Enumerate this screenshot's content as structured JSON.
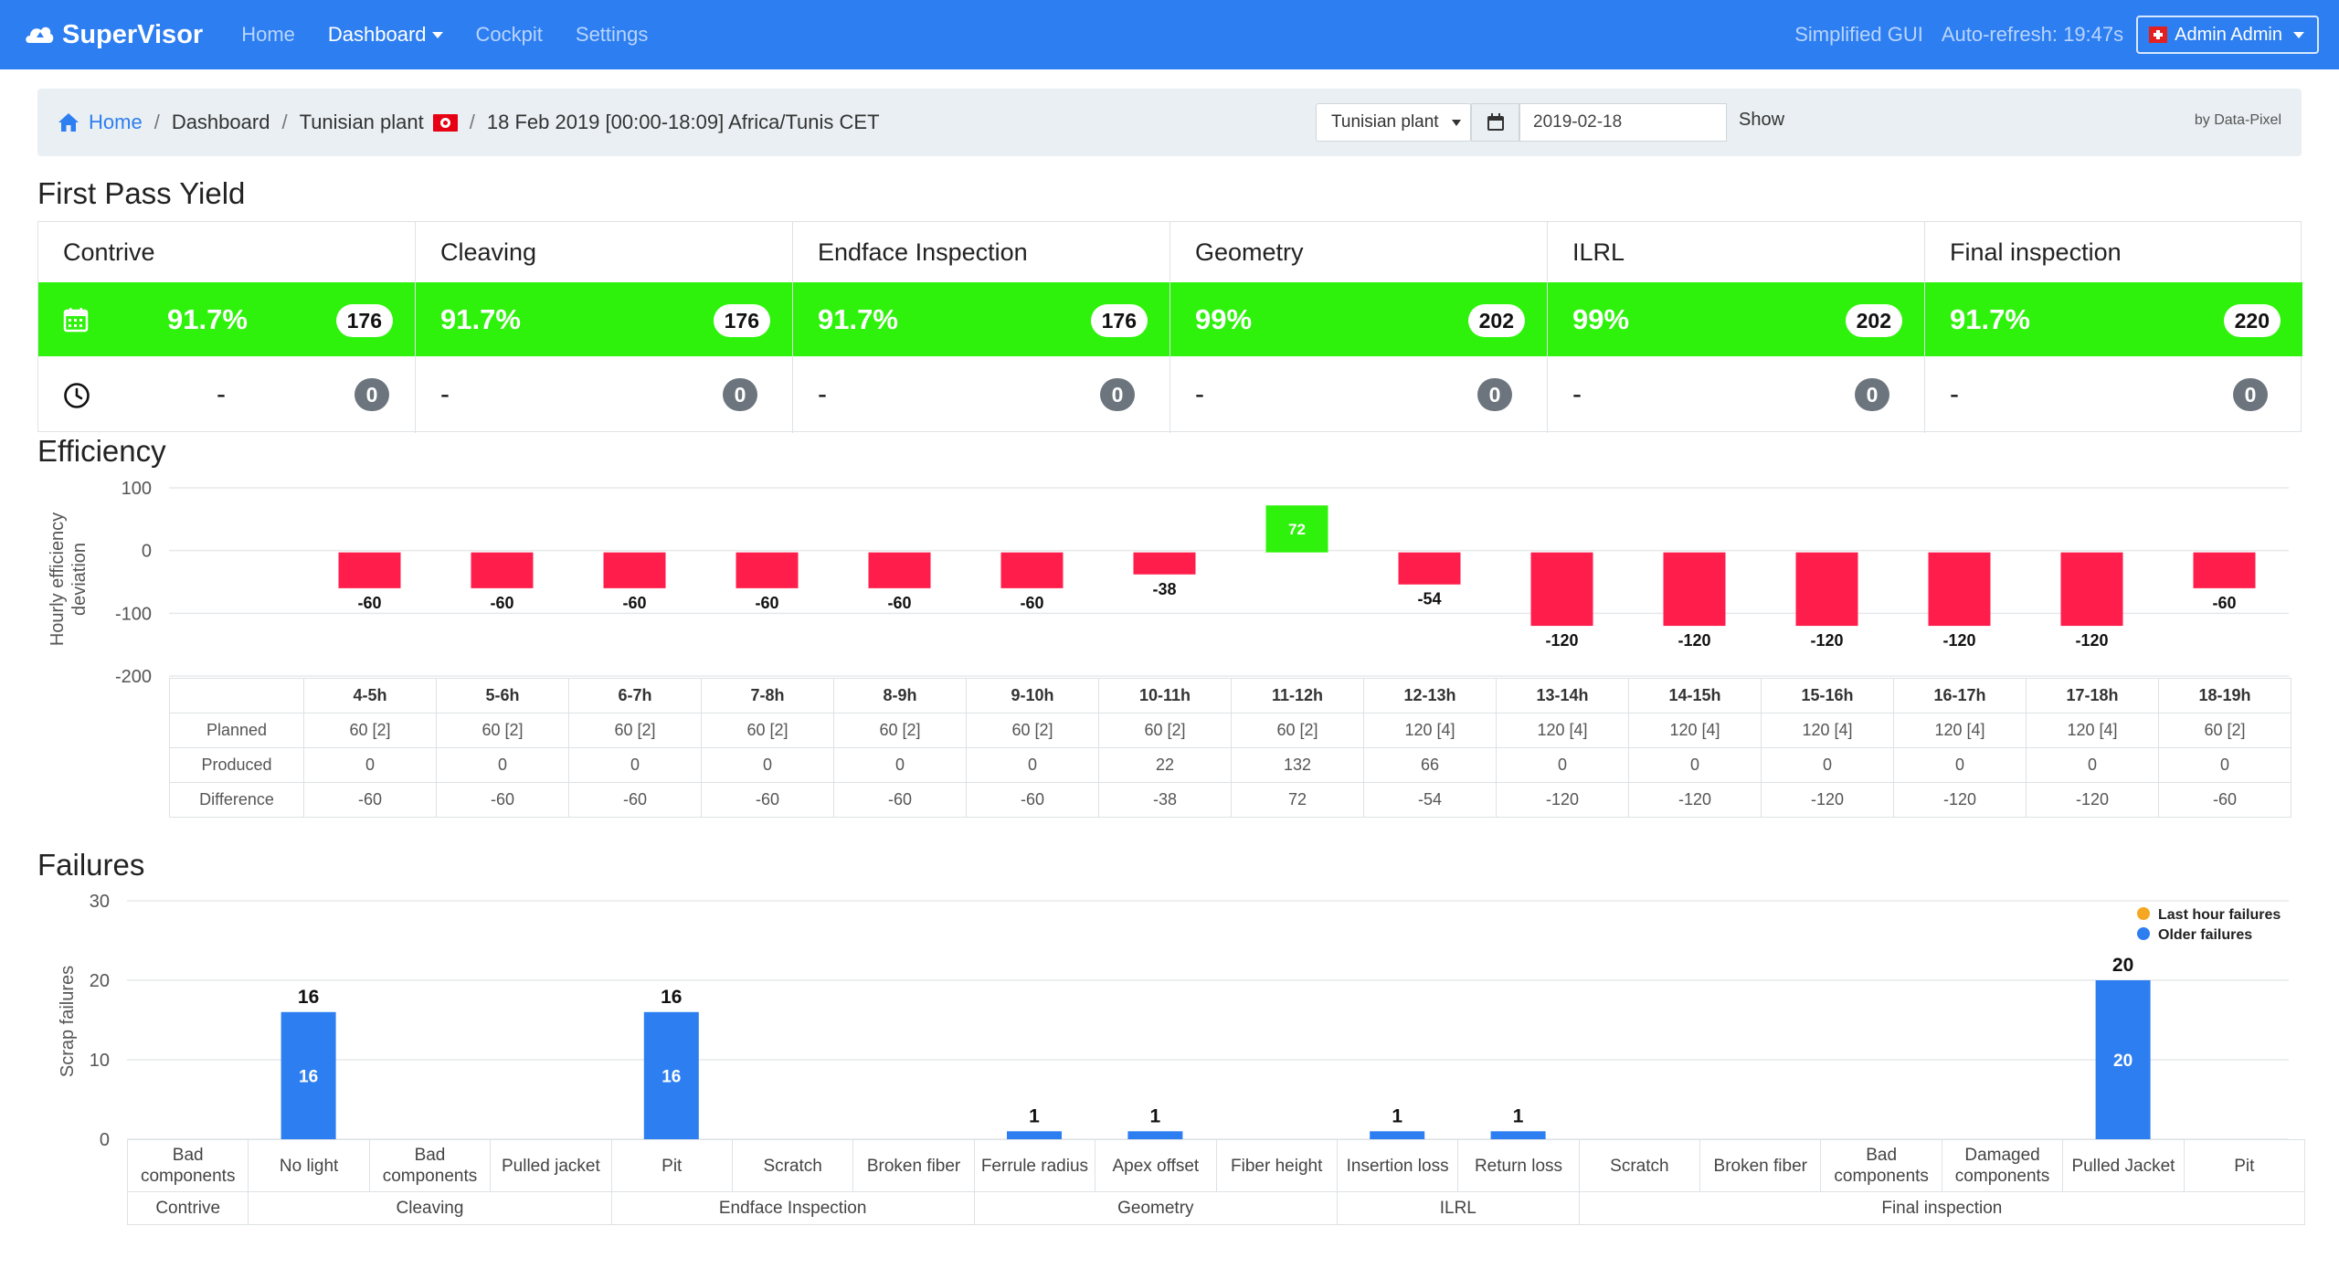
{
  "navbar": {
    "brand": "SuperVisor",
    "links": [
      "Home",
      "Dashboard",
      "Cockpit",
      "Settings"
    ],
    "simplified": "Simplified GUI",
    "autorefresh": "Auto-refresh: 19:47s",
    "user": "Admin Admin",
    "accent": "#2d7ef1"
  },
  "breadcrumb": {
    "home": "Home",
    "dashboard": "Dashboard",
    "plant": "Tunisian plant",
    "range": "18 Feb 2019 [00:00-18:09] Africa/Tunis CET"
  },
  "filters": {
    "plant": "Tunisian plant",
    "date": "2019-02-18",
    "show": "Show",
    "by": "by Data-Pixel"
  },
  "fpy": {
    "title": "First Pass Yield",
    "green": "#2ef20b",
    "columns": [
      {
        "name": "Contrive",
        "pct": "91.7%",
        "count": "176",
        "recent": "-",
        "recent_count": "0"
      },
      {
        "name": "Cleaving",
        "pct": "91.7%",
        "count": "176",
        "recent": "-",
        "recent_count": "0"
      },
      {
        "name": "Endface Inspection",
        "pct": "91.7%",
        "count": "176",
        "recent": "-",
        "recent_count": "0"
      },
      {
        "name": "Geometry",
        "pct": "99%",
        "count": "202",
        "recent": "-",
        "recent_count": "0"
      },
      {
        "name": "ILRL",
        "pct": "99%",
        "count": "202",
        "recent": "-",
        "recent_count": "0"
      },
      {
        "name": "Final inspection",
        "pct": "91.7%",
        "count": "220",
        "recent": "-",
        "recent_count": "0"
      }
    ]
  },
  "efficiency": {
    "title": "Efficiency",
    "row_labels": [
      "Planned",
      "Produced",
      "Difference"
    ],
    "planned": [
      "60 [2]",
      "60 [2]",
      "60 [2]",
      "60 [2]",
      "60 [2]",
      "60 [2]",
      "60 [2]",
      "60 [2]",
      "120 [4]",
      "120 [4]",
      "120 [4]",
      "120 [4]",
      "120 [4]",
      "120 [4]",
      "60 [2]"
    ],
    "produced": [
      "0",
      "0",
      "0",
      "0",
      "0",
      "0",
      "22",
      "132",
      "66",
      "0",
      "0",
      "0",
      "0",
      "0",
      "0"
    ],
    "difference": [
      "-60",
      "-60",
      "-60",
      "-60",
      "-60",
      "-60",
      "-38",
      "72",
      "-54",
      "-120",
      "-120",
      "-120",
      "-120",
      "-120",
      "-60"
    ]
  },
  "failures": {
    "title": "Failures",
    "station_labels": [
      "Contrive",
      "Cleaving",
      "Endface Inspection",
      "Geometry",
      "ILRL",
      "Final inspection"
    ]
  },
  "chart_data": [
    {
      "type": "bar",
      "ylabel": "Hourly efficiency deviation",
      "ylim": [
        -200,
        100
      ],
      "yticks": [
        "100",
        "0",
        "-100",
        "-200"
      ],
      "categories": [
        "4-5h",
        "5-6h",
        "6-7h",
        "7-8h",
        "8-9h",
        "9-10h",
        "10-11h",
        "11-12h",
        "12-13h",
        "13-14h",
        "14-15h",
        "15-16h",
        "16-17h",
        "17-18h",
        "18-19h"
      ],
      "values": [
        -60,
        -60,
        -60,
        -60,
        -60,
        -60,
        -38,
        72,
        -54,
        -120,
        -120,
        -120,
        -120,
        -120,
        -60
      ],
      "positive_color": "#2ef20b",
      "negative_color": "#ff1e4b"
    },
    {
      "type": "bar",
      "ylabel": "Scrap failures",
      "ylim": [
        0,
        30
      ],
      "yticks": [
        "30",
        "20",
        "10",
        "0"
      ],
      "legend": [
        "Last hour failures",
        "Older failures"
      ],
      "legend_colors": [
        "#f5a623",
        "#2d7ef1"
      ],
      "legend_position": "top-right",
      "categories": [
        "Bad components",
        "No light",
        "Bad components",
        "Pulled jacket",
        "Pit",
        "Scratch",
        "Broken fiber",
        "Ferrule radius",
        "Apex offset",
        "Fiber height",
        "Insertion loss",
        "Return loss",
        "Scratch",
        "Broken fiber",
        "Bad components",
        "Damaged components",
        "Pulled Jacket",
        "Pit"
      ],
      "groups": [
        {
          "name": "Contrive",
          "span": 1
        },
        {
          "name": "Cleaving",
          "span": 3
        },
        {
          "name": "Endface Inspection",
          "span": 3
        },
        {
          "name": "Geometry",
          "span": 3
        },
        {
          "name": "ILRL",
          "span": 2
        },
        {
          "name": "Final inspection",
          "span": 6
        }
      ],
      "series": [
        {
          "name": "Older failures",
          "values": [
            0,
            16,
            0,
            0,
            16,
            0,
            0,
            1,
            1,
            0,
            1,
            1,
            0,
            0,
            0,
            0,
            20,
            0
          ]
        },
        {
          "name": "Last hour failures",
          "values": [
            0,
            0,
            0,
            0,
            0,
            0,
            0,
            0,
            0,
            0,
            0,
            0,
            0,
            0,
            0,
            0,
            0,
            0
          ]
        }
      ],
      "totals": [
        0,
        16,
        0,
        0,
        16,
        0,
        0,
        1,
        1,
        0,
        1,
        1,
        0,
        0,
        0,
        0,
        20,
        0
      ]
    }
  ]
}
